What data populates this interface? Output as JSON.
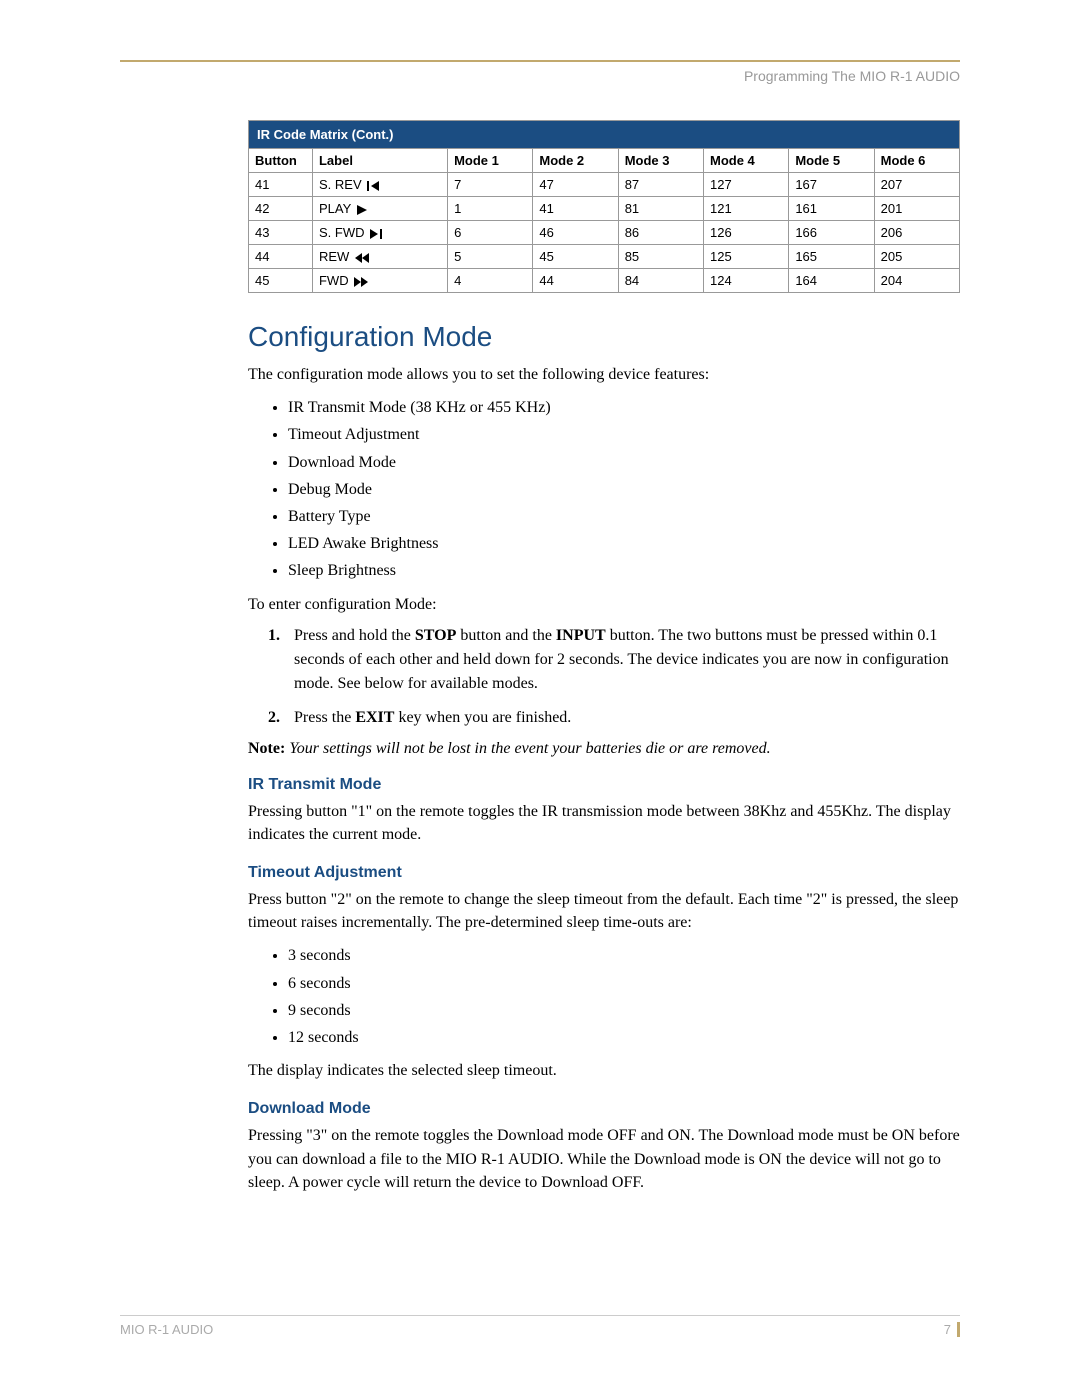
{
  "header": {
    "running_head": "Programming The MIO R-1 AUDIO"
  },
  "table": {
    "title": "IR Code Matrix (Cont.)",
    "title_bg": "#1b4d82",
    "title_fg": "#ffffff",
    "border_color": "#999999",
    "columns": [
      "Button",
      "Label",
      "Mode 1",
      "Mode 2",
      "Mode 3",
      "Mode 4",
      "Mode 5",
      "Mode 6"
    ],
    "col_widths": [
      "9%",
      "19%",
      "12%",
      "12%",
      "12%",
      "12%",
      "12%",
      "12%"
    ],
    "rows": [
      {
        "button": "41",
        "label": "S. REV",
        "icon": "skip-back",
        "modes": [
          "7",
          "47",
          "87",
          "127",
          "167",
          "207"
        ]
      },
      {
        "button": "42",
        "label": "PLAY",
        "icon": "play",
        "modes": [
          "1",
          "41",
          "81",
          "121",
          "161",
          "201"
        ]
      },
      {
        "button": "43",
        "label": "S. FWD",
        "icon": "skip-fwd",
        "modes": [
          "6",
          "46",
          "86",
          "126",
          "166",
          "206"
        ]
      },
      {
        "button": "44",
        "label": "REW",
        "icon": "rew",
        "modes": [
          "5",
          "45",
          "85",
          "125",
          "165",
          "205"
        ]
      },
      {
        "button": "45",
        "label": "FWD",
        "icon": "fwd",
        "modes": [
          "4",
          "44",
          "84",
          "124",
          "164",
          "204"
        ]
      }
    ]
  },
  "section": {
    "title": "Configuration Mode",
    "intro": "The configuration mode allows you to set the following device features:",
    "features": [
      "IR Transmit Mode (38 KHz or 455 KHz)",
      "Timeout Adjustment",
      "Download Mode",
      "Debug Mode",
      "Battery Type",
      "LED Awake Brightness",
      "Sleep Brightness"
    ],
    "enter_label": "To enter configuration Mode:",
    "steps": {
      "s1_a": "Press and hold the ",
      "s1_b": "STOP",
      "s1_c": " button and the ",
      "s1_d": "INPUT",
      "s1_e": " button. The two buttons must be pressed within 0.1 seconds of each other and held down for 2 seconds. The device indicates you are now in configuration mode. See below for available modes.",
      "s2_a": "Press the ",
      "s2_b": "EXIT",
      "s2_c": " key when you are finished."
    },
    "note_label": "Note:",
    "note_text": " Your settings will not be lost in the event your batteries die or are removed."
  },
  "ir_transmit": {
    "heading": "IR Transmit Mode",
    "body": "Pressing button \"1\" on the remote toggles the IR transmission mode between 38Khz and 455Khz. The display indicates the current mode."
  },
  "timeout": {
    "heading": "Timeout Adjustment",
    "body": "Press button \"2\" on the remote to change the sleep timeout from the default. Each time \"2\" is pressed, the sleep timeout raises incrementally. The pre-determined sleep time-outs are:",
    "items": [
      "3 seconds",
      "6 seconds",
      "9 seconds",
      "12 seconds"
    ],
    "after": "The display indicates the selected sleep timeout."
  },
  "download": {
    "heading": "Download Mode",
    "body": "Pressing \"3\" on the remote toggles the Download mode OFF and ON. The Download mode must be ON before you can download a file to the MIO R-1 AUDIO. While the Download mode is ON the device will not go to sleep. A power cycle will return the device to Download OFF."
  },
  "footer": {
    "doc": "MIO R-1 AUDIO",
    "page": "7"
  },
  "style": {
    "accent": "#1b4d82",
    "rule": "#c2a96e"
  }
}
